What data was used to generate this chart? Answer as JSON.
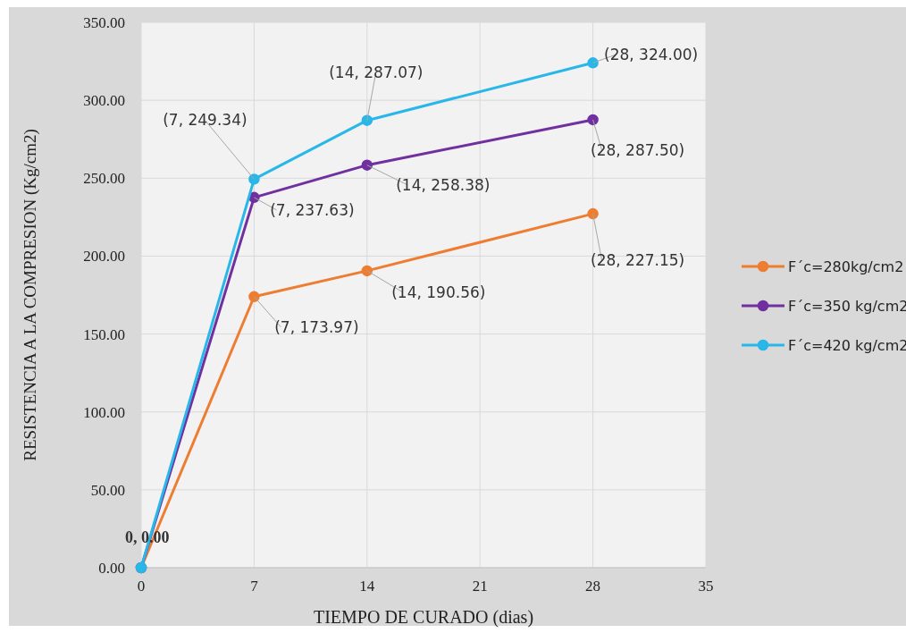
{
  "chart_data": {
    "type": "line",
    "xlabel": "TIEMPO DE CURADO (dias)",
    "ylabel": "RESISTENCIA A LA COMPRESION (Kg/cm2)",
    "x": [
      0,
      7,
      14,
      28
    ],
    "xlim": [
      0,
      35
    ],
    "xticks": [
      0,
      7,
      14,
      21,
      28,
      35
    ],
    "ylim": [
      0,
      350
    ],
    "yticks": [
      {
        "value": 0,
        "label": "0.00"
      },
      {
        "value": 50,
        "label": "50.00"
      },
      {
        "value": 100,
        "label": "100.00"
      },
      {
        "value": 150,
        "label": "150.00"
      },
      {
        "value": 200,
        "label": "200.00"
      },
      {
        "value": 250,
        "label": "250.00"
      },
      {
        "value": 300,
        "label": "300.00"
      },
      {
        "value": 350,
        "label": "350.00"
      }
    ],
    "grid": true,
    "legend": "right",
    "marker": "circle",
    "line_style": "solid",
    "series": [
      {
        "name": "F´c=280kg/cm2",
        "color": "#ed7d31",
        "values": [
          0,
          173.97,
          190.56,
          227.15
        ],
        "value_labels": [
          null,
          "(7, 173.97)",
          "(14, 190.56)",
          "(28, 227.15)"
        ]
      },
      {
        "name": "F´c=350 kg/cm2",
        "color": "#7030a0",
        "values": [
          0,
          237.63,
          258.38,
          287.5
        ],
        "value_labels": [
          null,
          "(7, 237.63)",
          "(14, 258.38)",
          "(28, 287.50)"
        ]
      },
      {
        "name": "F´c=420 kg/cm2",
        "color": "#29b6e8",
        "values": [
          0,
          249.34,
          287.07,
          324
        ],
        "value_labels": [
          "0, 0.00",
          "(7, 249.34)",
          "(14, 287.07)",
          "(28, 324.00)"
        ]
      }
    ]
  }
}
